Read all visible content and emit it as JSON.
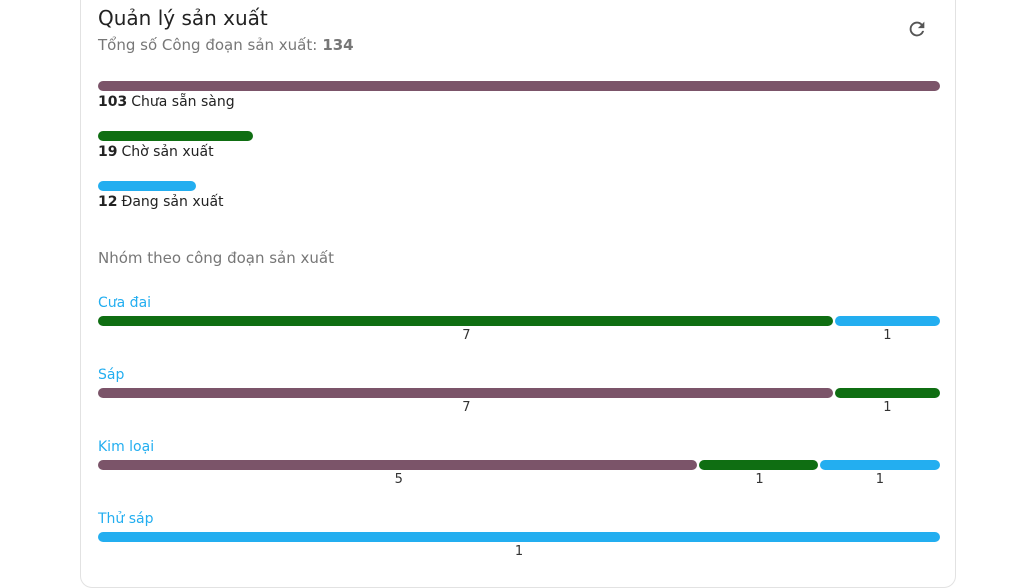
{
  "header": {
    "title": "Quản lý sản xuất",
    "subtitle": "Tổng số Công đoạn sản xuất:",
    "total": 134
  },
  "statuses": [
    {
      "count": 103,
      "label": "Chưa sẵn sàng",
      "color": "#7b5469"
    },
    {
      "count": 19,
      "label": "Chờ sản xuất",
      "color": "#0f6e12"
    },
    {
      "count": 12,
      "label": "Đang sản xuất",
      "color": "#23aef0"
    }
  ],
  "groups_title": "Nhóm theo công đoạn sản xuất",
  "groups": [
    {
      "name": "Cưa đai",
      "segments": [
        {
          "value": 7,
          "color": "#0f6e12"
        },
        {
          "value": 1,
          "color": "#23aef0"
        }
      ]
    },
    {
      "name": "Sáp",
      "segments": [
        {
          "value": 7,
          "color": "#7b5469"
        },
        {
          "value": 1,
          "color": "#0f6e12"
        }
      ]
    },
    {
      "name": "Kim loại",
      "segments": [
        {
          "value": 5,
          "color": "#7b5469"
        },
        {
          "value": 1,
          "color": "#0f6e12"
        },
        {
          "value": 1,
          "color": "#23aef0"
        }
      ]
    },
    {
      "name": "Thử sáp",
      "segments": [
        {
          "value": 1,
          "color": "#23aef0"
        }
      ]
    }
  ]
}
